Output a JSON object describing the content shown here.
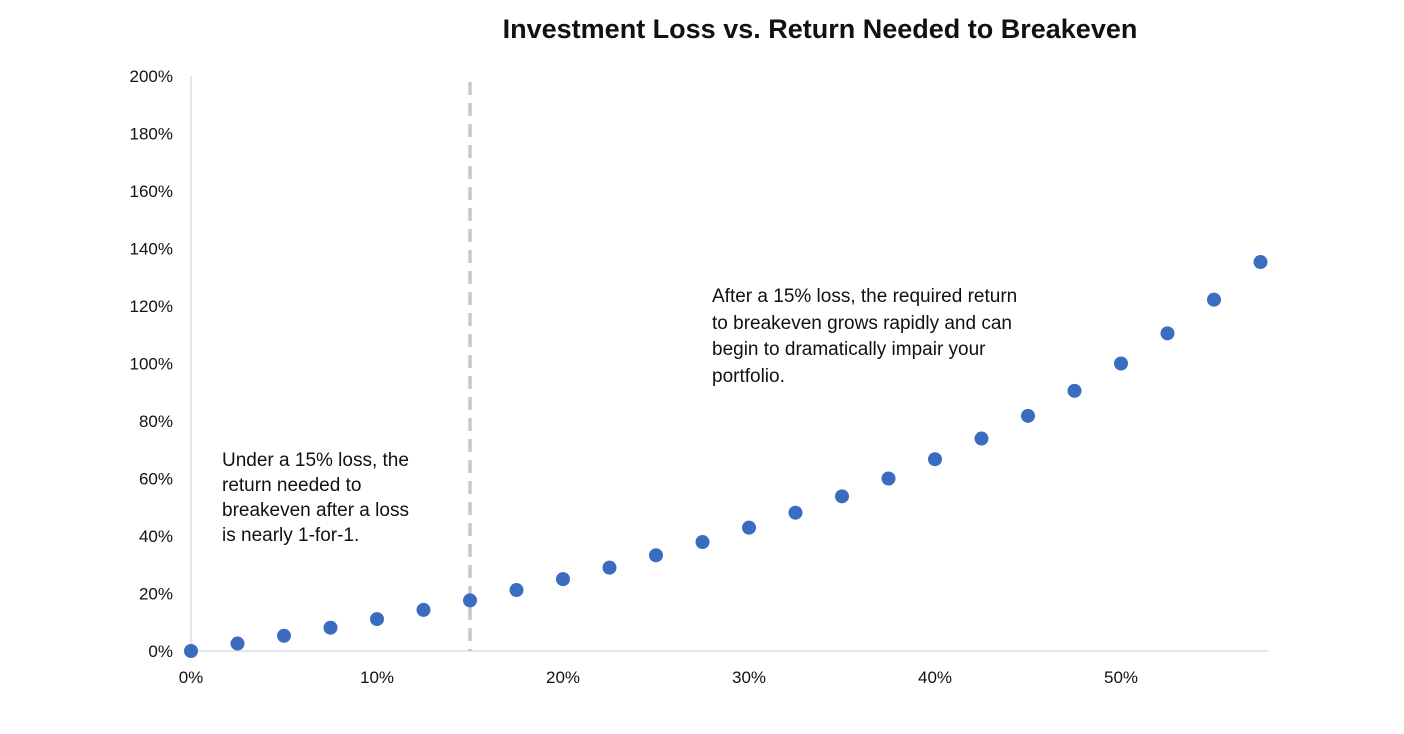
{
  "chart_data": {
    "type": "scatter",
    "title": "Investment Loss vs. Return Needed to Breakeven",
    "xlabel": "",
    "ylabel": "",
    "xlim": [
      0,
      58
    ],
    "ylim": [
      0,
      200
    ],
    "x_ticks": [
      0,
      10,
      20,
      30,
      40,
      50
    ],
    "x_tick_labels": [
      "0%",
      "10%",
      "20%",
      "30%",
      "40%",
      "50%"
    ],
    "y_ticks": [
      0,
      20,
      40,
      60,
      80,
      100,
      120,
      140,
      160,
      180,
      200
    ],
    "y_tick_labels": [
      "0%",
      "20%",
      "40%",
      "60%",
      "80%",
      "100%",
      "120%",
      "140%",
      "160%",
      "180%",
      "200%"
    ],
    "grid": false,
    "marker_color": "#3a6cc0",
    "reference_line": {
      "x": 15,
      "style": "dashed",
      "color": "#c8c8c8"
    },
    "series": [
      {
        "x": [
          0,
          2.5,
          5,
          7.5,
          10,
          12.5,
          15,
          17.5,
          20,
          22.5,
          25,
          27.5,
          30,
          32.5,
          35,
          37.5,
          40,
          42.5,
          45,
          47.5,
          50,
          52.5,
          55,
          57.5
        ],
        "y": [
          0,
          2.6,
          5.3,
          8.1,
          11.1,
          14.3,
          17.6,
          21.2,
          25.0,
          29.0,
          33.3,
          37.9,
          42.9,
          48.1,
          53.8,
          60.0,
          66.7,
          73.9,
          81.8,
          90.5,
          100.0,
          110.5,
          122.2,
          135.3
        ]
      }
    ],
    "annotations": [
      {
        "lines": [
          "Under a 15% loss, the",
          "return needed to",
          "breakeven after a loss",
          "is nearly 1-for-1."
        ]
      },
      {
        "lines": [
          "After a 15% loss, the required return",
          "to breakeven grows rapidly and can",
          "begin to dramatically impair your",
          "portfolio."
        ]
      }
    ]
  }
}
